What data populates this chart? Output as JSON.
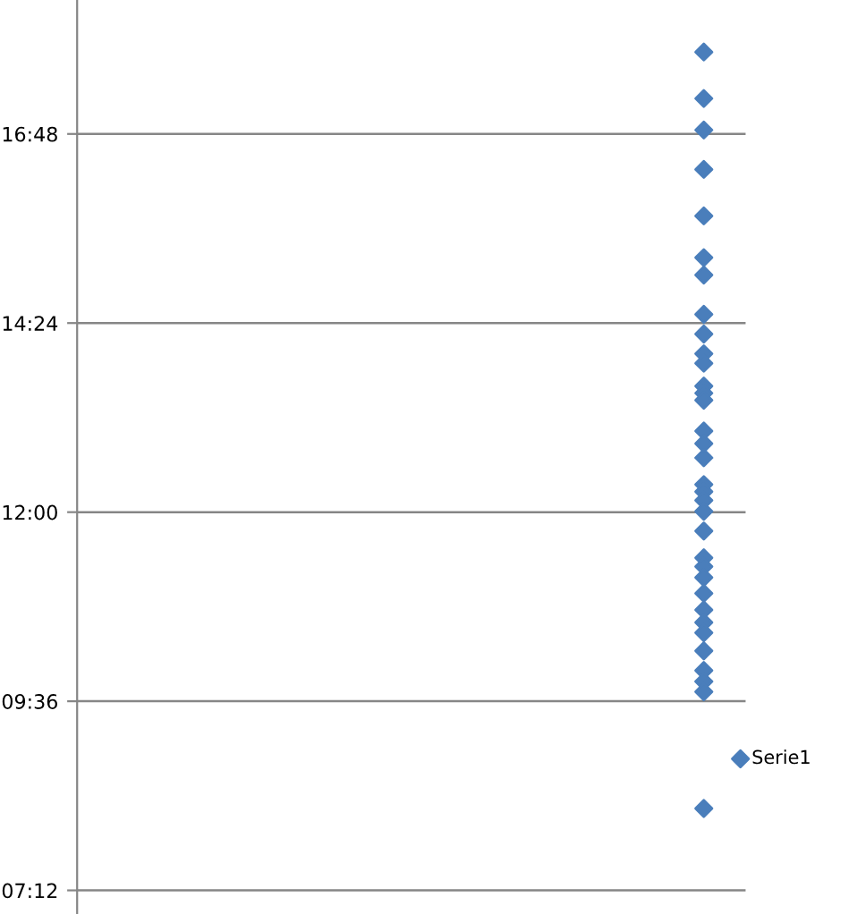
{
  "chart_data": {
    "type": "scatter",
    "series": [
      {
        "name": "Serie1",
        "color": "#4a7ebb",
        "x": [
          null,
          null,
          null,
          null,
          null,
          null,
          null,
          null,
          null,
          null,
          null,
          null,
          null,
          null,
          null,
          null,
          null,
          null,
          null,
          null,
          null,
          null,
          null,
          null,
          null,
          null,
          null,
          null,
          null,
          null,
          null,
          null,
          null,
          null
        ],
        "values": [
          17.84,
          17.25,
          16.85,
          16.35,
          15.76,
          15.23,
          15.01,
          14.51,
          14.26,
          14.01,
          13.89,
          13.6,
          13.51,
          13.42,
          13.03,
          12.87,
          12.69,
          12.35,
          12.26,
          12.15,
          12.01,
          11.76,
          11.42,
          11.31,
          11.17,
          10.97,
          10.76,
          10.6,
          10.47,
          10.24,
          9.99,
          9.85,
          9.72,
          8.24
        ]
      }
    ],
    "categories": [
      null
    ],
    "ylim": [
      6.9,
      18.5
    ],
    "yticks": [
      {
        "value": 7.2,
        "label": "07:12"
      },
      {
        "value": 9.6,
        "label": "09:36"
      },
      {
        "value": 12,
        "label": "12:00"
      },
      {
        "value": 14.4,
        "label": "14:24"
      },
      {
        "value": 16.8,
        "label": "16:48"
      }
    ],
    "tick_labels": "y",
    "grid": "y",
    "legend": "right",
    "marker": "diamond"
  }
}
